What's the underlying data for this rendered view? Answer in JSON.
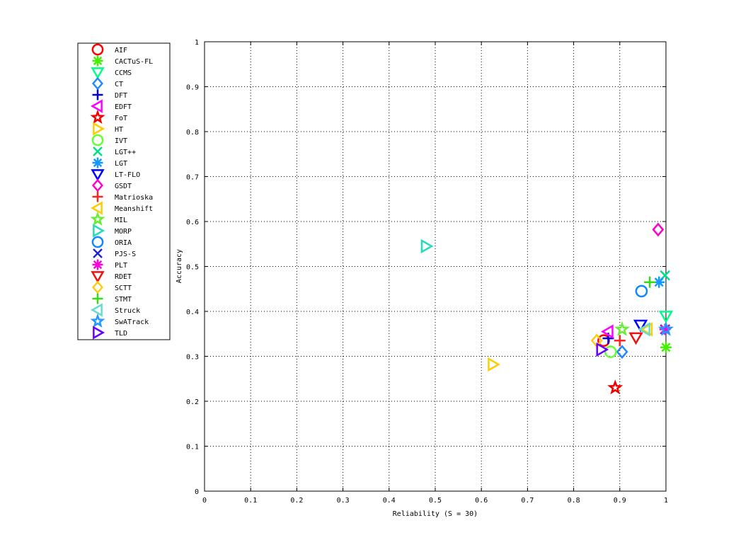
{
  "chart_data": {
    "type": "scatter",
    "title": "",
    "xlabel": "Reliability (S = 30)",
    "ylabel": "Accuracy",
    "xlim": [
      0,
      1
    ],
    "ylim": [
      0,
      1
    ],
    "xticks": [
      "0",
      "0.1",
      "0.2",
      "0.3",
      "0.4",
      "0.5",
      "0.6",
      "0.7",
      "0.8",
      "0.9",
      "1"
    ],
    "yticks": [
      "0",
      "0.1",
      "0.2",
      "0.3",
      "0.4",
      "0.5",
      "0.6",
      "0.7",
      "0.8",
      "0.9",
      "1"
    ],
    "grid": true,
    "legend_position": "outside-left",
    "series": [
      {
        "name": "AIF",
        "marker": "circle",
        "color": "#ff0000",
        "x": 0.865,
        "y": 0.335
      },
      {
        "name": "CACTuS-FL",
        "marker": "asterisk",
        "color": "#44ee00",
        "x": 1.0,
        "y": 0.32
      },
      {
        "name": "CCMS",
        "marker": "triangle-down",
        "color": "#00ff88",
        "x": 1.0,
        "y": 0.39
      },
      {
        "name": "CT",
        "marker": "diamond",
        "color": "#2288ff",
        "x": 0.905,
        "y": 0.31
      },
      {
        "name": "DFT",
        "marker": "plus",
        "color": "#0000dd",
        "x": 0.875,
        "y": 0.34
      },
      {
        "name": "EDFT",
        "marker": "triangle-left",
        "color": "#ff00ff",
        "x": 0.875,
        "y": 0.355
      },
      {
        "name": "FoT",
        "marker": "star",
        "color": "#ee0000",
        "x": 0.89,
        "y": 0.23
      },
      {
        "name": "HT",
        "marker": "triangle-right",
        "color": "#ffcc00",
        "x": 0.625,
        "y": 0.282
      },
      {
        "name": "IVT",
        "marker": "circle",
        "color": "#66ff33",
        "x": 0.88,
        "y": 0.31
      },
      {
        "name": "LGT++",
        "marker": "cross",
        "color": "#00dd88",
        "x": 0.998,
        "y": 0.48
      },
      {
        "name": "LGT",
        "marker": "asterisk",
        "color": "#1199ff",
        "x": 0.985,
        "y": 0.465
      },
      {
        "name": "LT-FLO",
        "marker": "triangle-down",
        "color": "#0000ff",
        "x": 0.945,
        "y": 0.37
      },
      {
        "name": "GSDT",
        "marker": "diamond",
        "color": "#ff00cc",
        "x": 0.983,
        "y": 0.582
      },
      {
        "name": "Matrioska",
        "marker": "plus",
        "color": "#ff2222",
        "x": 0.9,
        "y": 0.335
      },
      {
        "name": "Meanshift",
        "marker": "triangle-left",
        "color": "#ffcc00",
        "x": 0.96,
        "y": 0.36
      },
      {
        "name": "MIL",
        "marker": "star",
        "color": "#66ee33",
        "x": 0.905,
        "y": 0.36
      },
      {
        "name": "MORP",
        "marker": "triangle-right",
        "color": "#22ddbb",
        "x": 0.48,
        "y": 0.545
      },
      {
        "name": "ORIA",
        "marker": "circle",
        "color": "#1188ff",
        "x": 0.947,
        "y": 0.445
      },
      {
        "name": "PJS-S",
        "marker": "cross",
        "color": "#2222cc",
        "x": 0.998,
        "y": 0.36
      },
      {
        "name": "PLT",
        "marker": "asterisk",
        "color": "#ff00dd",
        "x": 0.998,
        "y": 0.36
      },
      {
        "name": "RDET",
        "marker": "triangle-down",
        "color": "#ee1111",
        "x": 0.935,
        "y": 0.342
      },
      {
        "name": "SCTT",
        "marker": "diamond",
        "color": "#ffcc11",
        "x": 0.85,
        "y": 0.335
      },
      {
        "name": "STMT",
        "marker": "plus",
        "color": "#33dd11",
        "x": 0.965,
        "y": 0.465
      },
      {
        "name": "Struck",
        "marker": "triangle-left",
        "color": "#66ddcc",
        "x": 0.955,
        "y": 0.36
      },
      {
        "name": "SwATrack",
        "marker": "star",
        "color": "#2299ff",
        "x": 1.0,
        "y": 0.36
      },
      {
        "name": "TLD",
        "marker": "triangle-right",
        "color": "#6600ff",
        "x": 0.86,
        "y": 0.315
      }
    ]
  }
}
